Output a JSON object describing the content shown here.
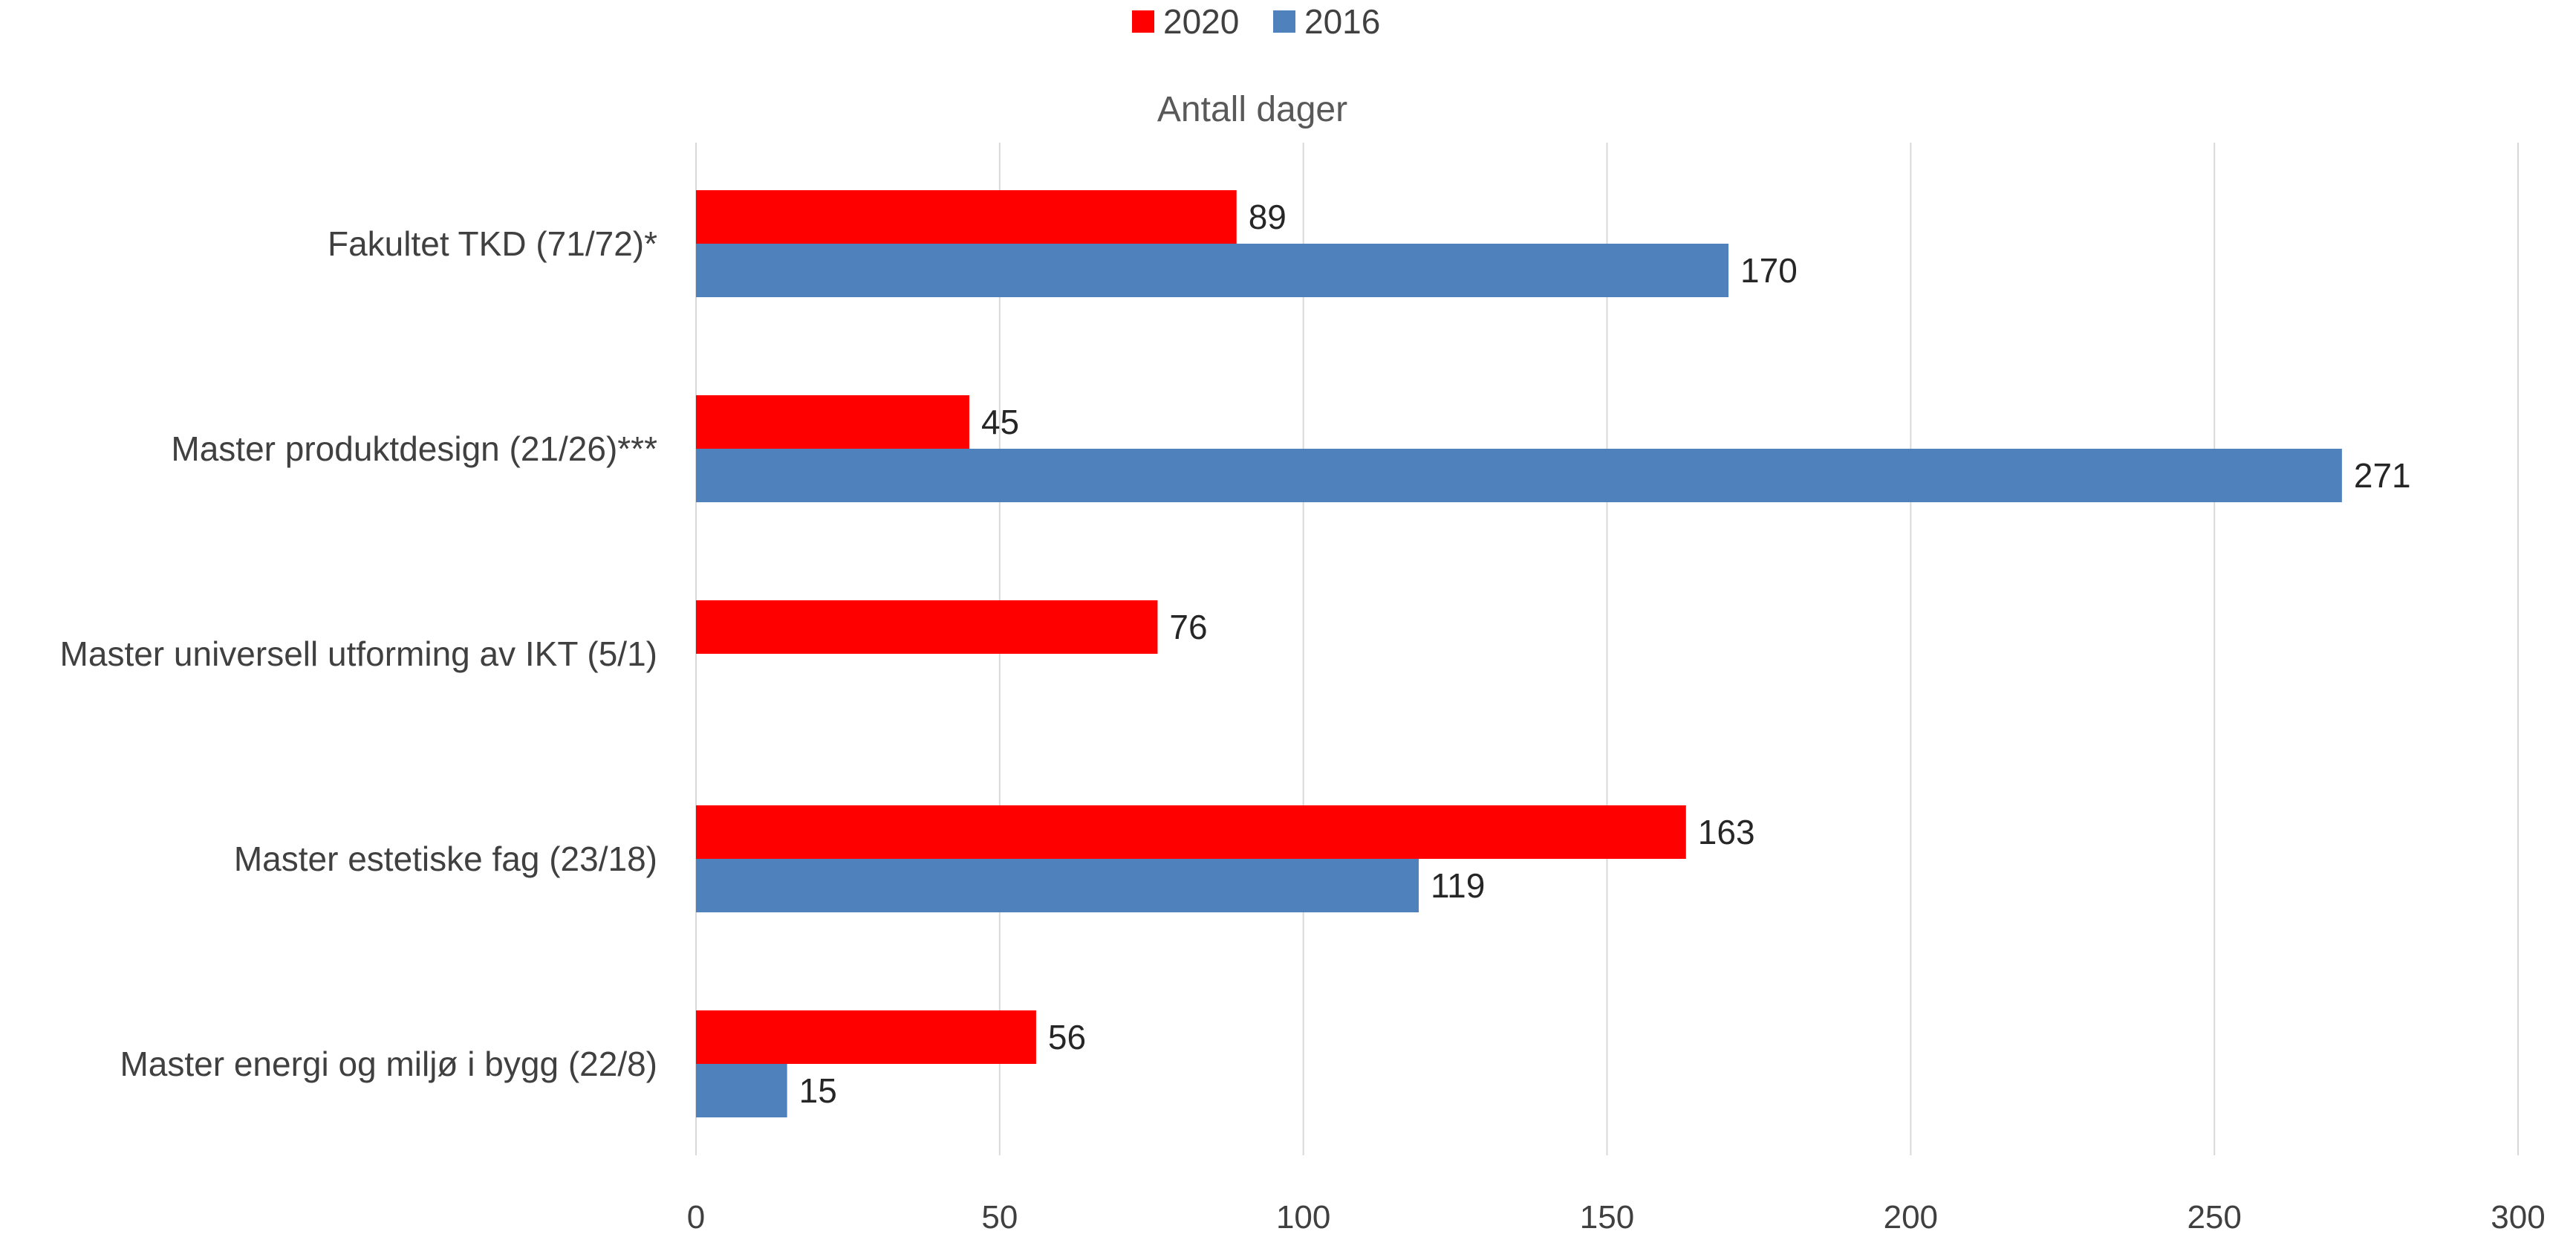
{
  "chart_data": {
    "type": "bar",
    "orientation": "horizontal",
    "title": "",
    "xlabel": "Antall dager",
    "ylabel": "",
    "categories": [
      "Fakultet TKD (71/72)*",
      "Master produktdesign (21/26)***",
      "Master universell utforming av IKT (5/1)",
      "Master estetiske fag (23/18)",
      "Master energi og miljø i bygg (22/8)"
    ],
    "series": [
      {
        "name": "2020",
        "color": "#ff0000",
        "values": [
          89,
          45,
          76,
          163,
          56
        ]
      },
      {
        "name": "2016",
        "color": "#4f81bd",
        "values": [
          170,
          271,
          null,
          119,
          15
        ]
      }
    ],
    "xlim": [
      0,
      300
    ],
    "xticks": [
      0,
      50,
      100,
      150,
      200,
      250,
      300
    ],
    "grid": true,
    "legend_position": "top",
    "data_labels": true
  }
}
